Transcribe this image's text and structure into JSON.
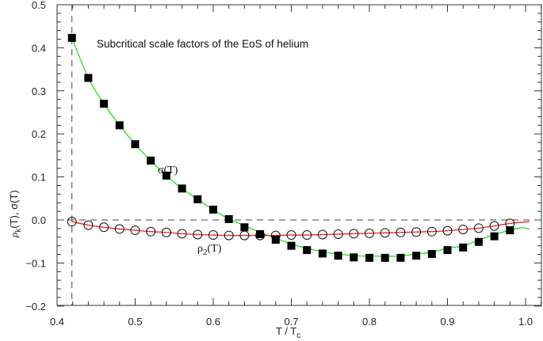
{
  "chart_data": {
    "type": "scatter",
    "title": "Subcritical scale factors of the EoS of helium",
    "xlabel": "T / T_c",
    "ylabel": "ρ_k(T), σ(T)",
    "xlim": [
      0.4,
      1.02
    ],
    "ylim": [
      -0.2,
      0.5
    ],
    "x_ticks": [
      "0.4",
      "0.5",
      "0.6",
      "0.7",
      "0.8",
      "0.9",
      "1.0"
    ],
    "y_ticks": [
      "−0.2",
      "−0.1",
      "0.0",
      "0.1",
      "0.2",
      "0.3",
      "0.4",
      "0.5"
    ],
    "grid": false,
    "reference_lines": {
      "horizontal_dashed_y": 0.0,
      "vertical_dashed_x": 0.419
    },
    "series": [
      {
        "name": "σ(T)",
        "marker": "filled-square",
        "fit_line_color": "#22dd22",
        "x": [
          0.419,
          0.44,
          0.46,
          0.48,
          0.5,
          0.52,
          0.54,
          0.56,
          0.58,
          0.6,
          0.62,
          0.64,
          0.66,
          0.68,
          0.7,
          0.72,
          0.74,
          0.76,
          0.78,
          0.8,
          0.82,
          0.84,
          0.86,
          0.88,
          0.9,
          0.92,
          0.94,
          0.96,
          0.98
        ],
        "values": [
          0.423,
          0.33,
          0.27,
          0.22,
          0.176,
          0.138,
          0.103,
          0.073,
          0.048,
          0.024,
          0.002,
          -0.017,
          -0.033,
          -0.046,
          -0.06,
          -0.07,
          -0.078,
          -0.083,
          -0.087,
          -0.088,
          -0.088,
          -0.088,
          -0.083,
          -0.079,
          -0.07,
          -0.064,
          -0.051,
          -0.038,
          -0.024
        ]
      },
      {
        "name": "ρ2(T)",
        "marker": "open-circle",
        "fit_line_color": "#ee2222",
        "x": [
          0.419,
          0.44,
          0.46,
          0.48,
          0.5,
          0.52,
          0.54,
          0.56,
          0.58,
          0.6,
          0.62,
          0.64,
          0.66,
          0.68,
          0.7,
          0.72,
          0.74,
          0.76,
          0.78,
          0.8,
          0.82,
          0.84,
          0.86,
          0.88,
          0.9,
          0.92,
          0.94,
          0.96,
          0.98
        ],
        "values": [
          -0.004,
          -0.012,
          -0.017,
          -0.021,
          -0.024,
          -0.027,
          -0.029,
          -0.032,
          -0.034,
          -0.035,
          -0.036,
          -0.036,
          -0.036,
          -0.036,
          -0.035,
          -0.035,
          -0.034,
          -0.033,
          -0.032,
          -0.031,
          -0.03,
          -0.029,
          -0.028,
          -0.027,
          -0.025,
          -0.022,
          -0.019,
          -0.014,
          -0.008
        ]
      }
    ],
    "annotations": [
      {
        "text": "σ(T)",
        "x": 0.54,
        "y": 0.11
      },
      {
        "text": "ρ2(T)",
        "x": 0.56,
        "y": -0.065
      }
    ]
  },
  "labels": {
    "title": "Subcritical scale factors of the EoS of helium",
    "sigma": "σ(T)",
    "rho_prefix": "ρ",
    "rho_sub": "2",
    "rho_suffix": "(T)",
    "xlabel_main": "T / T",
    "xlabel_sub": "c",
    "ylabel_rho": "ρ",
    "ylabel_sub": "k",
    "ylabel_rest": "(T), σ(T)"
  }
}
